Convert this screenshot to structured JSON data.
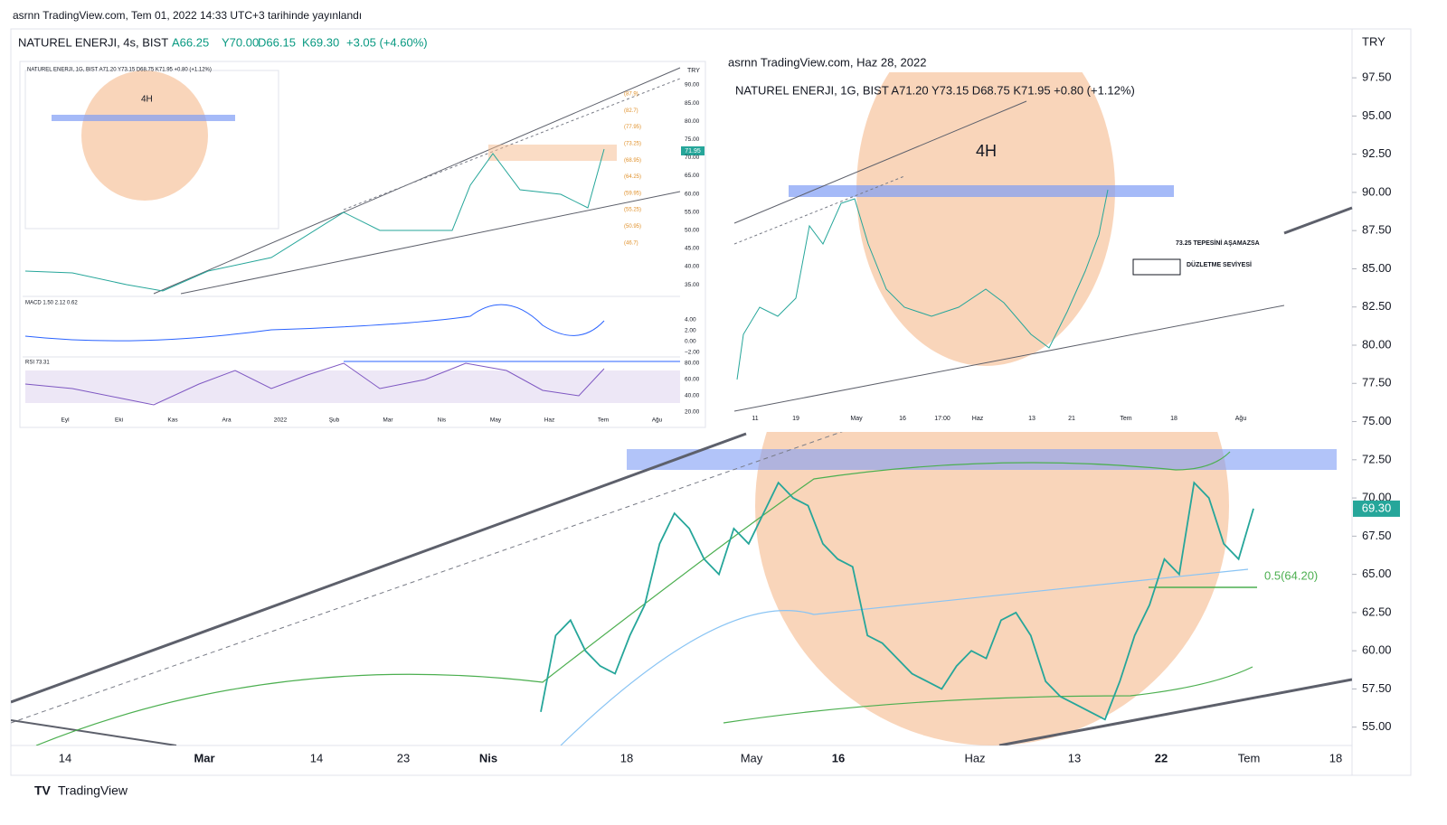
{
  "header": {
    "published": "asrnn TradingView.com, Tem 01, 2022 14:33 UTC+3 tarihinde yayınlandı"
  },
  "main": {
    "legend": {
      "symbol": "NATUREL ENERJI, 4s, BIST",
      "open": "A66.25",
      "high": "Y70.00",
      "low": "D66.15",
      "close": "K69.30",
      "change": "+3.05 (+4.60%)"
    },
    "currency": "TRY",
    "annotation": "0.5(64.20)",
    "x_axis_labels": [
      "14",
      "Mar",
      "14",
      "23",
      "Nis",
      "18",
      "May",
      "16",
      "Haz",
      "13",
      "22",
      "Tem",
      "18"
    ]
  },
  "chart_data": {
    "type": "line",
    "color": "#26a69a",
    "values": [
      56,
      61,
      62,
      60,
      59,
      58.5,
      61,
      63,
      67,
      69,
      68,
      66,
      65,
      68,
      67,
      69,
      71,
      70,
      69.5,
      67,
      66,
      65.5,
      61,
      60.5,
      59.5,
      58.5,
      58,
      57.5,
      59,
      60,
      59.5,
      62,
      62.5,
      61,
      58,
      57,
      56.5,
      56,
      55.5,
      58,
      61,
      63,
      66,
      65,
      71,
      70,
      67,
      66,
      69.3
    ],
    "value_labels": [
      null,
      null,
      null,
      null,
      null,
      null,
      null,
      null,
      null,
      null,
      null,
      null,
      null,
      null,
      null,
      null,
      null,
      null,
      null,
      null,
      null,
      null,
      null,
      null,
      null,
      null,
      null,
      null,
      null,
      null,
      null,
      null,
      null,
      null,
      null,
      null,
      null,
      null,
      null,
      null,
      null,
      null,
      null,
      null,
      null,
      null,
      null,
      null,
      "69.30"
    ],
    "ylim": [
      53.8,
      100.7
    ],
    "yticks": [
      {
        "value": 55,
        "label": "55.00"
      },
      {
        "value": 57.5,
        "label": "57.50"
      },
      {
        "value": 60,
        "label": "60.00"
      },
      {
        "value": 62.5,
        "label": "62.50"
      },
      {
        "value": 65,
        "label": "65.00"
      },
      {
        "value": 67.5,
        "label": "67.50"
      },
      {
        "value": 70,
        "label": "70.00"
      },
      {
        "value": 72.5,
        "label": "72.50"
      },
      {
        "value": 75,
        "label": "75.00"
      },
      {
        "value": 77.5,
        "label": "77.50"
      },
      {
        "value": 80,
        "label": "80.00"
      },
      {
        "value": 82.5,
        "label": "82.50"
      },
      {
        "value": 85,
        "label": "85.00"
      },
      {
        "value": 87.5,
        "label": "87.50"
      },
      {
        "value": 90,
        "label": "90.00"
      },
      {
        "value": 92.5,
        "label": "92.50"
      },
      {
        "value": 95,
        "label": "95.00"
      },
      {
        "value": 97.5,
        "label": "97.50"
      }
    ]
  },
  "inset_daily": {
    "source": "asrnn TradingView.com, Haz 28, 2022",
    "legend": "NATUREL ENERJI, 1G, BIST A71.20 Y73.15 D68.75 K71.95 +0.80 (+1.12%)",
    "tag": "4H",
    "note_1": "73.25 TEPESİNİ AŞAMAZSA",
    "note_2": "DÜZLETME SEVİYESİ",
    "x_axis_labels": [
      "11",
      "19",
      "May",
      "16",
      "17:00",
      "Haz",
      "13",
      "21",
      "Tem",
      "18",
      "Ağu"
    ]
  },
  "inset_4h": {
    "legend": "NATUREL ENERJI, 1G, BIST A71.20 Y73.15 D68.75 K71.95 +0.80 (+1.12%)",
    "price_tag": "71.95",
    "currency": "TRY",
    "fib_labels": [
      "(87.9)",
      "(82.7)",
      "(77.95)",
      "(73.25)",
      "(68.95)",
      "(64.25)",
      "(59.95)",
      "(55.25)",
      "(50.95)",
      "(46.7)"
    ],
    "y_axis_labels": [
      "90.00",
      "85.00",
      "80.00",
      "75.00",
      "70.00",
      "65.00",
      "60.00",
      "55.00",
      "50.00",
      "45.00",
      "40.00",
      "35.00"
    ],
    "macd_legend": "MACD 1.50 2.12 0.62",
    "macd_axis_labels": [
      "4.00",
      "2.00",
      "0.00",
      "−2.00"
    ],
    "rsi_legend": "RSI 73.31",
    "rsi_axis_labels": [
      "80.00",
      "60.00",
      "40.00",
      "20.00"
    ],
    "x_axis_labels": [
      "Eyl",
      "Eki",
      "Kas",
      "Ara",
      "2022",
      "Şub",
      "Mar",
      "Nis",
      "May",
      "Haz",
      "Tem",
      "Ağu"
    ]
  },
  "footer": {
    "brand": "TradingView"
  }
}
